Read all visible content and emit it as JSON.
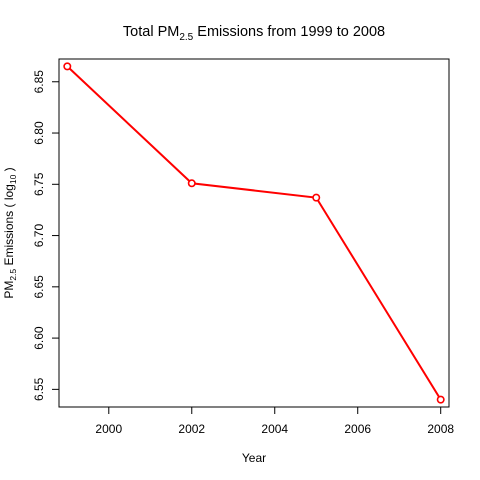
{
  "chart_data": {
    "type": "line",
    "title": {
      "prefix": "Total PM",
      "subscript": "2.5",
      "suffix": " Emissions from 1999 to 2008"
    },
    "xlabel": "Year",
    "ylabel": {
      "prefix": "PM",
      "subscript": "2.5",
      "middle": " Emissions ( log",
      "subscript2": "10",
      "suffix": " )"
    },
    "x": [
      1999,
      2002,
      2005,
      2008
    ],
    "series": [
      {
        "values": [
          6.865,
          6.751,
          6.737,
          6.54
        ],
        "color": "#ff0000",
        "marker": "open-circle"
      }
    ],
    "xlim": [
      1998.8,
      2008.2
    ],
    "ylim": [
      6.5328,
      6.8722
    ],
    "xticks": [
      "2000",
      "2002",
      "2004",
      "2006",
      "2008"
    ],
    "yticks": [
      "6.55",
      "6.60",
      "6.65",
      "6.70",
      "6.75",
      "6.80",
      "6.85"
    ],
    "grid": false,
    "legend": "none"
  }
}
